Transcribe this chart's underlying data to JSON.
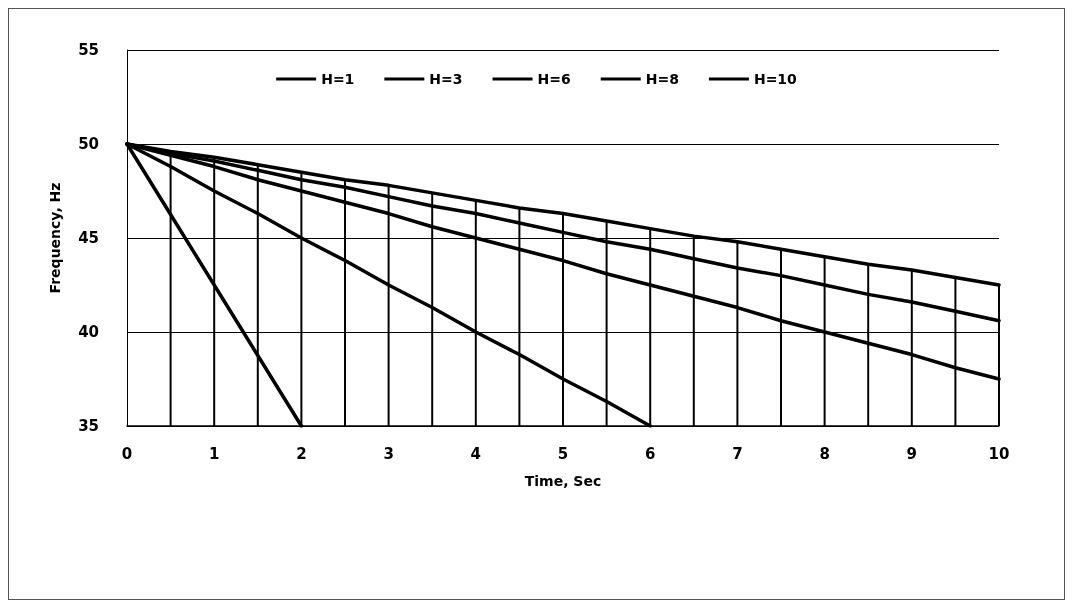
{
  "chart_data": {
    "type": "line",
    "xlabel": "Time, Sec",
    "ylabel": "Frequency, Hz",
    "x": [
      0,
      0.5,
      1,
      1.5,
      2,
      2.5,
      3,
      3.5,
      4,
      4.5,
      5,
      5.5,
      6,
      6.5,
      7,
      7.5,
      8,
      8.5,
      9,
      9.5,
      10
    ],
    "series": [
      {
        "name": "H=1",
        "color": "#000000",
        "values": [
          50,
          46.25,
          42.5,
          38.75,
          35,
          null,
          null,
          null,
          null,
          null,
          null,
          null,
          null,
          null,
          null,
          null,
          null,
          null,
          null,
          null,
          null
        ]
      },
      {
        "name": "H=3",
        "color": "#000000",
        "values": [
          50,
          48.8,
          47.5,
          46.3,
          45,
          43.8,
          42.5,
          41.3,
          40,
          38.8,
          37.5,
          36.3,
          35,
          null,
          null,
          null,
          null,
          null,
          null,
          null,
          null
        ]
      },
      {
        "name": "H=6",
        "color": "#000000",
        "values": [
          50,
          49.4,
          48.8,
          48.1,
          47.5,
          46.9,
          46.3,
          45.6,
          45,
          44.4,
          43.8,
          43.1,
          42.5,
          41.9,
          41.3,
          40.6,
          40,
          39.4,
          38.8,
          38.1,
          37.5
        ]
      },
      {
        "name": "H=8",
        "color": "#000000",
        "values": [
          50,
          49.5,
          49.1,
          48.6,
          48.1,
          47.7,
          47.2,
          46.7,
          46.3,
          45.8,
          45.3,
          44.8,
          44.4,
          43.9,
          43.4,
          43.0,
          42.5,
          42.0,
          41.6,
          41.1,
          40.6
        ]
      },
      {
        "name": "H=10",
        "color": "#000000",
        "values": [
          50,
          49.6,
          49.3,
          48.9,
          48.5,
          48.1,
          47.8,
          47.4,
          47,
          46.6,
          46.3,
          45.9,
          45.5,
          45.1,
          44.8,
          44.4,
          44,
          43.6,
          43.3,
          42.9,
          42.5
        ],
        "errors": [
          null,
          [
            35,
            49.6
          ],
          [
            35,
            49.3
          ],
          [
            35,
            48.9
          ],
          [
            35,
            48.5
          ],
          [
            35,
            48.1
          ],
          [
            35,
            47.8
          ],
          [
            35,
            47.4
          ],
          [
            35,
            47
          ],
          [
            35,
            46.6
          ],
          [
            35,
            46.3
          ],
          [
            35,
            45.9
          ],
          [
            35,
            45.5
          ],
          [
            35,
            45.1
          ],
          [
            35,
            44.8
          ],
          [
            35,
            44.4
          ],
          [
            35,
            44
          ],
          [
            35,
            43.6
          ],
          [
            35,
            43.3
          ],
          [
            35,
            42.9
          ],
          [
            35,
            42.5
          ]
        ]
      }
    ],
    "xlim": [
      0,
      10
    ],
    "xticks": [
      0,
      1,
      2,
      3,
      4,
      5,
      6,
      7,
      8,
      9,
      10
    ],
    "ylim": [
      35,
      55
    ],
    "yticks": [
      35,
      40,
      45,
      50,
      55
    ],
    "grid": "y",
    "legend": "top",
    "marker": "none",
    "line_style": "solid"
  }
}
